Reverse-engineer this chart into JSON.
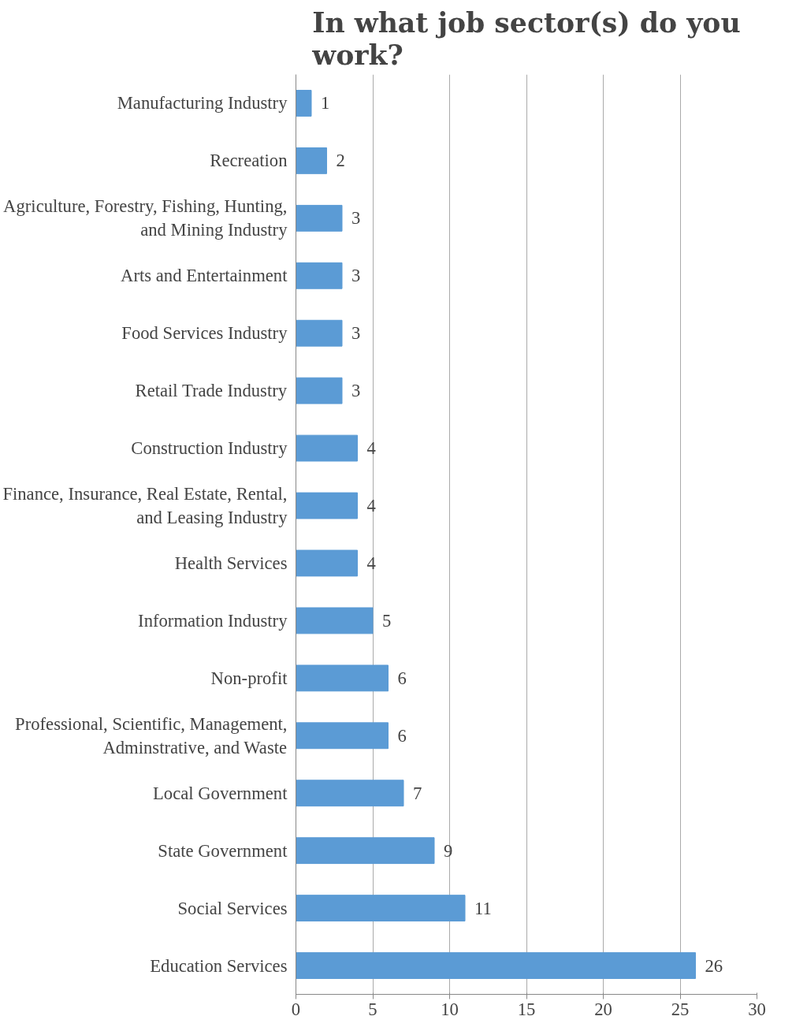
{
  "chart_data": {
    "type": "bar",
    "orientation": "horizontal",
    "title": "In what job sector(s) do you work?",
    "categories": [
      "Manufacturing Industry",
      "Recreation",
      "Agriculture, Forestry, Fishing, Hunting, and Mining Industry",
      "Arts and Entertainment",
      "Food Services Industry",
      "Retail Trade Industry",
      "Construction Industry",
      "Finance, Insurance, Real Estate, Rental, and Leasing Industry",
      "Health Services",
      "Information Industry",
      "Non-profit",
      "Professional, Scientific, Management, Adminstrative, and Waste",
      "Local Government",
      "State Government",
      "Social Services",
      "Education Services"
    ],
    "values": [
      1,
      2,
      3,
      3,
      3,
      3,
      4,
      4,
      4,
      5,
      6,
      6,
      7,
      9,
      11,
      26
    ],
    "color": "#5b9bd5",
    "xlim": [
      0,
      30
    ],
    "xticks": [
      0,
      5,
      10,
      15,
      20,
      25,
      30
    ],
    "grid": "x",
    "data_labels": true
  }
}
